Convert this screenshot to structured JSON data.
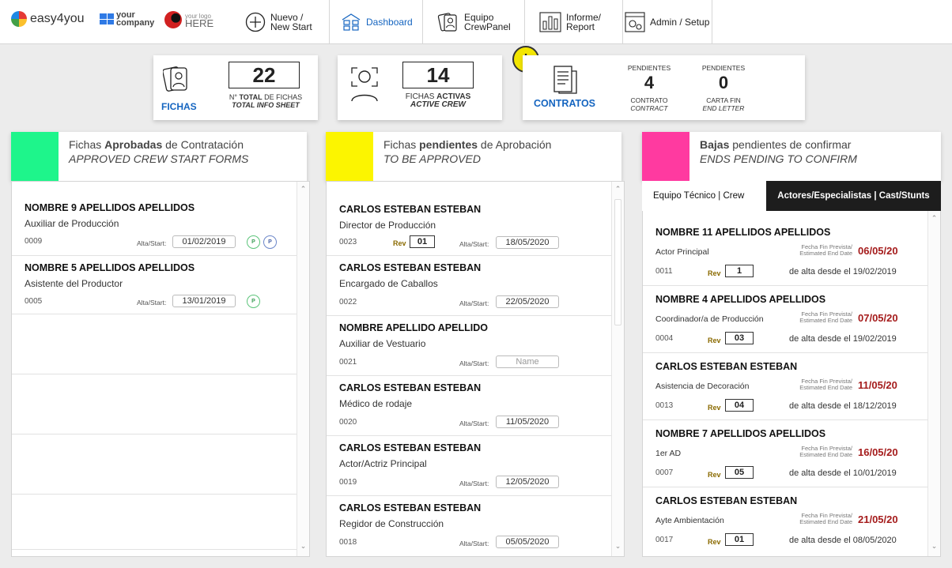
{
  "nav": {
    "brand": "easy4you",
    "your_company": [
      "your",
      "company"
    ],
    "your_logo_small": "your logo",
    "your_logo_big": "HERE",
    "new_start": [
      "Nuevo /",
      "New Start"
    ],
    "dashboard": "Dashboard",
    "crew_panel": [
      "Equipo",
      "CrewPanel"
    ],
    "report": [
      "Informe/",
      "Report"
    ],
    "admin": "Admin / Setup"
  },
  "stats": {
    "fichas": {
      "label": "FICHAS",
      "value": "22",
      "sub1_bold": "TOTAL",
      "sub1_pre": "N° ",
      "sub1_post": " DE FICHAS",
      "sub2": "TOTAL INFO SHEET"
    },
    "activas": {
      "value": "14",
      "sub1_pre": "FICHAS ",
      "sub1_bold": "ACTIVAS",
      "sub2": "ACTIVE CREW"
    },
    "contratos": {
      "label": "CONTRATOS",
      "warn": "!",
      "pend_label": "PENDIENTES",
      "contract_value": "4",
      "contract_sub1": "CONTRATO",
      "contract_sub2": "CONTRACT",
      "end_value": "0",
      "end_sub1": "CARTA FIN",
      "end_sub2": "END LETTER"
    }
  },
  "colors": {
    "approved": "#1ef58b",
    "pending": "#fcf500",
    "ends": "#ff3aa0",
    "accent": "#1565c0"
  },
  "approved": {
    "t1_pre": "Fichas ",
    "t1_bold": "Aprobadas",
    "t1_post": " de Contratación",
    "t2": "APPROVED CREW START FORMS",
    "alta_label": "Alta/Start:",
    "items": [
      {
        "name": "NOMBRE 9 APELLIDOS APELLIDOS",
        "role": "Auxiliar de Producción",
        "id": "0009",
        "date": "01/02/2019",
        "badges": [
          "P",
          "P"
        ]
      },
      {
        "name": "NOMBRE 5 APELLIDOS APELLIDOS",
        "role": "Asistente del Productor",
        "id": "0005",
        "date": "13/01/2019",
        "badges": [
          "P"
        ]
      }
    ]
  },
  "pending": {
    "t1_pre": "Fichas ",
    "t1_bold": "pendientes",
    "t1_post": " de Aprobación",
    "t2": "TO BE APPROVED",
    "alta_label": "Alta/Start:",
    "rev_label": "Rev",
    "items": [
      {
        "name": "CARLOS ESTEBAN ESTEBAN",
        "role": "Director de Producción",
        "id": "0023",
        "rev": "01",
        "date": "18/05/2020"
      },
      {
        "name": "CARLOS ESTEBAN ESTEBAN",
        "role": "Encargado de Caballos",
        "id": "0022",
        "rev": "",
        "date": "22/05/2020"
      },
      {
        "name": "NOMBRE APELLIDO APELLIDO",
        "role": "Auxiliar de Vestuario",
        "id": "0021",
        "rev": "",
        "date": "",
        "placeholder": "Name"
      },
      {
        "name": "CARLOS ESTEBAN ESTEBAN",
        "role": "Médico de rodaje",
        "id": "0020",
        "rev": "",
        "date": "11/05/2020"
      },
      {
        "name": "CARLOS ESTEBAN ESTEBAN",
        "role": "Actor/Actriz Principal",
        "id": "0019",
        "rev": "",
        "date": "12/05/2020"
      },
      {
        "name": "CARLOS ESTEBAN ESTEBAN",
        "role": "Regidor de Construcción",
        "id": "0018",
        "rev": "",
        "date": "05/05/2020"
      }
    ]
  },
  "ends": {
    "t1_bold": "Bajas",
    "t1_post": " pendientes de confirmar",
    "t2": "ENDS PENDING TO CONFIRM",
    "tab_crew": "Equipo Técnico | Crew",
    "tab_cast": "Actores/Especialistas | Cast/Stunts",
    "end_label": [
      "Fecha Fin Prevista/",
      "Estimated End Date"
    ],
    "rev_label": "Rev",
    "since_prefix": "de alta desde el ",
    "items": [
      {
        "name": "NOMBRE 11 APELLIDOS APELLIDOS",
        "role": "Actor Principal",
        "id": "0011",
        "rev": "1",
        "end": "06/05/20",
        "since": "19/02/2019"
      },
      {
        "name": "NOMBRE 4 APELLIDOS APELLIDOS",
        "role": "Coordinador/a de Producción",
        "id": "0004",
        "rev": "03",
        "end": "07/05/20",
        "since": "19/02/2019"
      },
      {
        "name": "CARLOS ESTEBAN ESTEBAN",
        "role": "Asistencia de Decoración",
        "id": "0013",
        "rev": "04",
        "end": "11/05/20",
        "since": "18/12/2019"
      },
      {
        "name": "NOMBRE 7 APELLIDOS APELLIDOS",
        "role": "1er AD",
        "id": "0007",
        "rev": "05",
        "end": "16/05/20",
        "since": "10/01/2019"
      },
      {
        "name": "CARLOS ESTEBAN ESTEBAN",
        "role": "Ayte Ambientación",
        "id": "0017",
        "rev": "01",
        "end": "21/05/20",
        "since": "08/05/2020"
      }
    ]
  }
}
